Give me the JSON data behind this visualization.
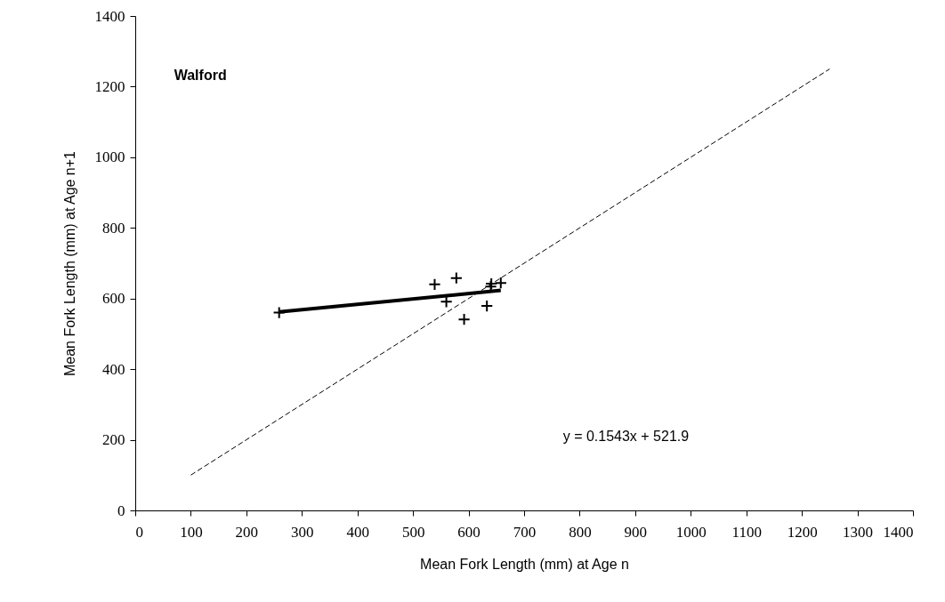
{
  "chart_data": {
    "type": "scatter",
    "xlabel": "Mean Fork Length (mm) at Age n",
    "ylabel": "Mean Fork Length (mm) at Age n+1",
    "annotations": [
      "Walford",
      "y = 0.1543x + 521.9"
    ],
    "series": [
      {
        "type": "scatter",
        "color": "#000000",
        "marker": "cross",
        "x": [
          259,
          539,
          578,
          560,
          592,
          633,
          641,
          640,
          658
        ],
        "values": [
          560,
          640,
          658,
          591,
          541,
          579,
          642,
          634,
          644
        ]
      },
      {
        "type": "line",
        "color": "#000000",
        "line_style": "solid",
        "x": [
          259,
          658
        ],
        "values": [
          562,
          623
        ]
      },
      {
        "type": "line",
        "color": "#000000",
        "line_style": "dashed",
        "x": [
          100,
          1250
        ],
        "values": [
          100,
          1250
        ]
      }
    ],
    "xlim": [
      0,
      1400
    ],
    "ylim": [
      0,
      1400
    ],
    "xticks": [
      0,
      100,
      200,
      300,
      400,
      500,
      600,
      700,
      800,
      900,
      1000,
      1100,
      1200,
      1300,
      1400
    ],
    "yticks": [
      0,
      200,
      400,
      600,
      800,
      1000,
      1200,
      1400
    ],
    "grid": false
  }
}
